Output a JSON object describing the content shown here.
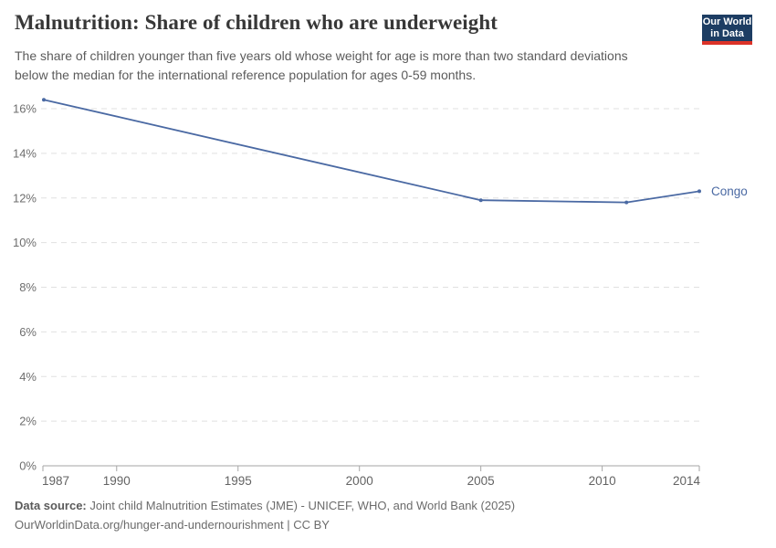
{
  "header": {
    "title": "Malnutrition: Share of children who are underweight",
    "subtitle": "The share of children younger than five years old whose weight for age is more than two standard deviations below the median for the international reference population for ages 0-59 months.",
    "logo": {
      "line1": "Our World",
      "line2": "in Data",
      "bg_color": "#1d3d63",
      "accent_color": "#dc3328"
    }
  },
  "footer": {
    "source_label": "Data source:",
    "source_text": "Joint child Malnutrition Estimates (JME) - UNICEF, WHO, and World Bank (2025)",
    "note_text": "OurWorldinData.org/hunger-and-undernourishment | CC BY"
  },
  "chart_data": {
    "type": "line",
    "title": "Malnutrition: Share of children who are underweight",
    "series": [
      {
        "name": "Congo",
        "x": [
          1987,
          2005,
          2011,
          2014
        ],
        "values": [
          16.4,
          11.9,
          11.8,
          12.3
        ],
        "color": "#4a69a3"
      }
    ],
    "xlim": [
      1987,
      2014
    ],
    "ylim": [
      0,
      16
    ],
    "xticks": [
      1987,
      1990,
      1995,
      2000,
      2005,
      2010,
      2014
    ],
    "yticks": [
      0,
      2,
      4,
      6,
      8,
      10,
      12,
      14,
      16
    ],
    "ytick_suffix": "%",
    "xlabel": "",
    "ylabel": "",
    "grid": true,
    "gridline_style": "dashed",
    "legend_position": "end-of-line"
  }
}
